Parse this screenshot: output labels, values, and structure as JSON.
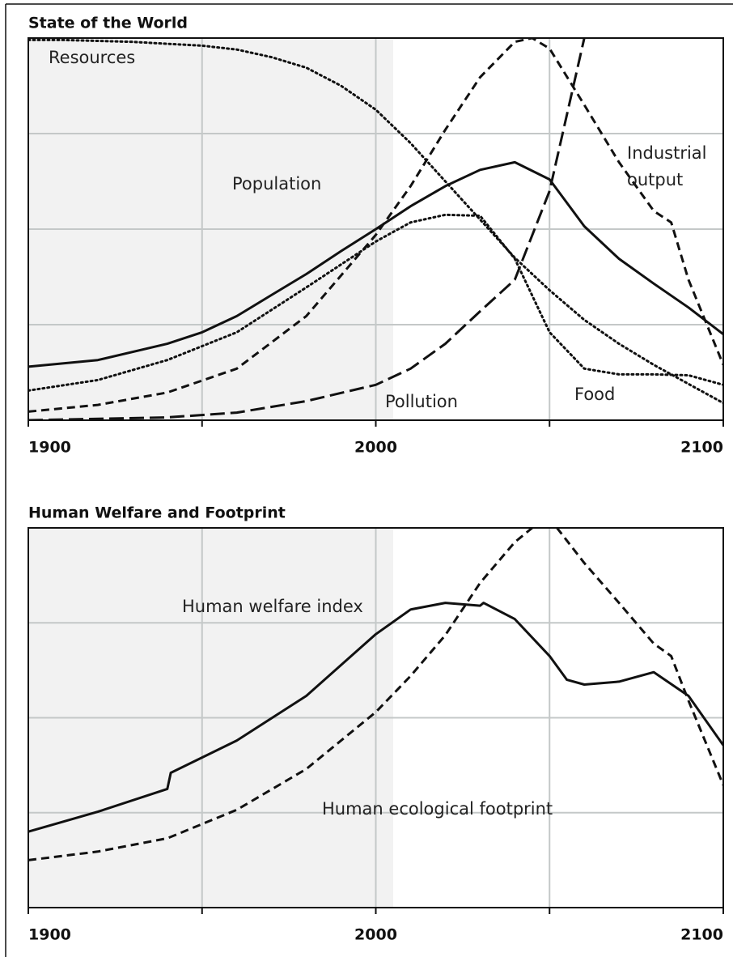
{
  "chart_data": [
    {
      "type": "line",
      "title": "State of the World",
      "xlim": [
        1900,
        2100
      ],
      "xticks": [
        1900,
        2000,
        2100
      ],
      "minor_xticks": [
        1950,
        2050
      ],
      "ylim": [
        0,
        4
      ],
      "yticks": [
        0,
        1,
        2,
        3,
        4
      ],
      "grid": true,
      "shade_x": [
        1900,
        2005
      ],
      "series": [
        {
          "name": "Resources",
          "color": "#111111",
          "style": "dotted",
          "x": [
            1900,
            1910,
            1920,
            1930,
            1940,
            1950,
            1960,
            1970,
            1980,
            1990,
            2000,
            2010,
            2020,
            2030,
            2040,
            2050,
            2060,
            2070,
            2080,
            2090,
            2100
          ],
          "values": [
            3.98,
            3.98,
            3.97,
            3.96,
            3.94,
            3.92,
            3.88,
            3.8,
            3.69,
            3.5,
            3.25,
            2.9,
            2.5,
            2.1,
            1.7,
            1.36,
            1.05,
            0.8,
            0.58,
            0.38,
            0.18
          ]
        },
        {
          "name": "Population",
          "color": "#111111",
          "style": "solid",
          "x": [
            1900,
            1920,
            1940,
            1950,
            1960,
            1970,
            1980,
            1990,
            2000,
            2010,
            2020,
            2030,
            2040,
            2050,
            2060,
            2070,
            2080,
            2090,
            2100
          ],
          "values": [
            0.56,
            0.63,
            0.8,
            0.92,
            1.09,
            1.31,
            1.53,
            1.77,
            2.0,
            2.24,
            2.45,
            2.62,
            2.7,
            2.52,
            2.03,
            1.69,
            1.43,
            1.18,
            0.9
          ]
        },
        {
          "name": "Industrial output",
          "color": "#111111",
          "style": "dashed",
          "x": [
            1900,
            1920,
            1940,
            1960,
            1980,
            2000,
            2010,
            2020,
            2030,
            2040,
            2045,
            2050,
            2060,
            2070,
            2080,
            2085,
            2090,
            2100
          ],
          "values": [
            0.09,
            0.16,
            0.29,
            0.54,
            1.09,
            1.94,
            2.45,
            3.04,
            3.59,
            3.96,
            4.0,
            3.89,
            3.3,
            2.7,
            2.19,
            2.07,
            1.47,
            0.58
          ]
        },
        {
          "name": "Food",
          "color": "#111111",
          "style": "dotted",
          "x": [
            1900,
            1920,
            1940,
            1960,
            1980,
            2000,
            2010,
            2020,
            2030,
            2040,
            2050,
            2060,
            2070,
            2080,
            2090,
            2100
          ],
          "values": [
            0.31,
            0.42,
            0.63,
            0.92,
            1.39,
            1.87,
            2.07,
            2.15,
            2.14,
            1.69,
            0.92,
            0.54,
            0.48,
            0.48,
            0.47,
            0.37
          ]
        },
        {
          "name": "Pollution",
          "color": "#111111",
          "style": "long-dashed",
          "x": [
            1900,
            1940,
            1960,
            1980,
            2000,
            2010,
            2020,
            2030,
            2040,
            2050,
            2060
          ],
          "values": [
            0,
            0.03,
            0.08,
            0.2,
            0.37,
            0.54,
            0.8,
            1.14,
            1.47,
            2.4,
            4.0
          ]
        }
      ]
    },
    {
      "type": "line",
      "title": "Human Welfare and Footprint",
      "xlim": [
        1900,
        2100
      ],
      "xticks": [
        1900,
        2000,
        2100
      ],
      "minor_xticks": [
        1950,
        2050
      ],
      "ylim": [
        0,
        4
      ],
      "yticks": [
        0,
        1,
        2,
        3,
        4
      ],
      "grid": true,
      "shade_x": [
        1900,
        2005
      ],
      "series": [
        {
          "name": "Human welfare index",
          "color": "#111111",
          "style": "solid",
          "x": [
            1900,
            1920,
            1940,
            1941,
            1960,
            1980,
            2000,
            2010,
            2020,
            2030,
            2031,
            2040,
            2050,
            2055,
            2060,
            2070,
            2080,
            2090,
            2100
          ],
          "values": [
            0.8,
            1.01,
            1.25,
            1.42,
            1.76,
            2.23,
            2.88,
            3.14,
            3.21,
            3.18,
            3.21,
            3.04,
            2.65,
            2.4,
            2.35,
            2.38,
            2.48,
            2.23,
            1.71
          ]
        },
        {
          "name": "Human ecological footprint",
          "color": "#111111",
          "style": "dashed",
          "x": [
            1900,
            1920,
            1940,
            1960,
            1980,
            2000,
            2010,
            2020,
            2030,
            2040,
            2045,
            2050,
            2060,
            2070,
            2080,
            2085,
            2090,
            2100
          ],
          "values": [
            0.5,
            0.59,
            0.73,
            1.03,
            1.46,
            2.06,
            2.44,
            2.87,
            3.42,
            3.85,
            4.0,
            4.1,
            3.63,
            3.21,
            2.78,
            2.65,
            2.18,
            1.29
          ]
        }
      ]
    }
  ]
}
